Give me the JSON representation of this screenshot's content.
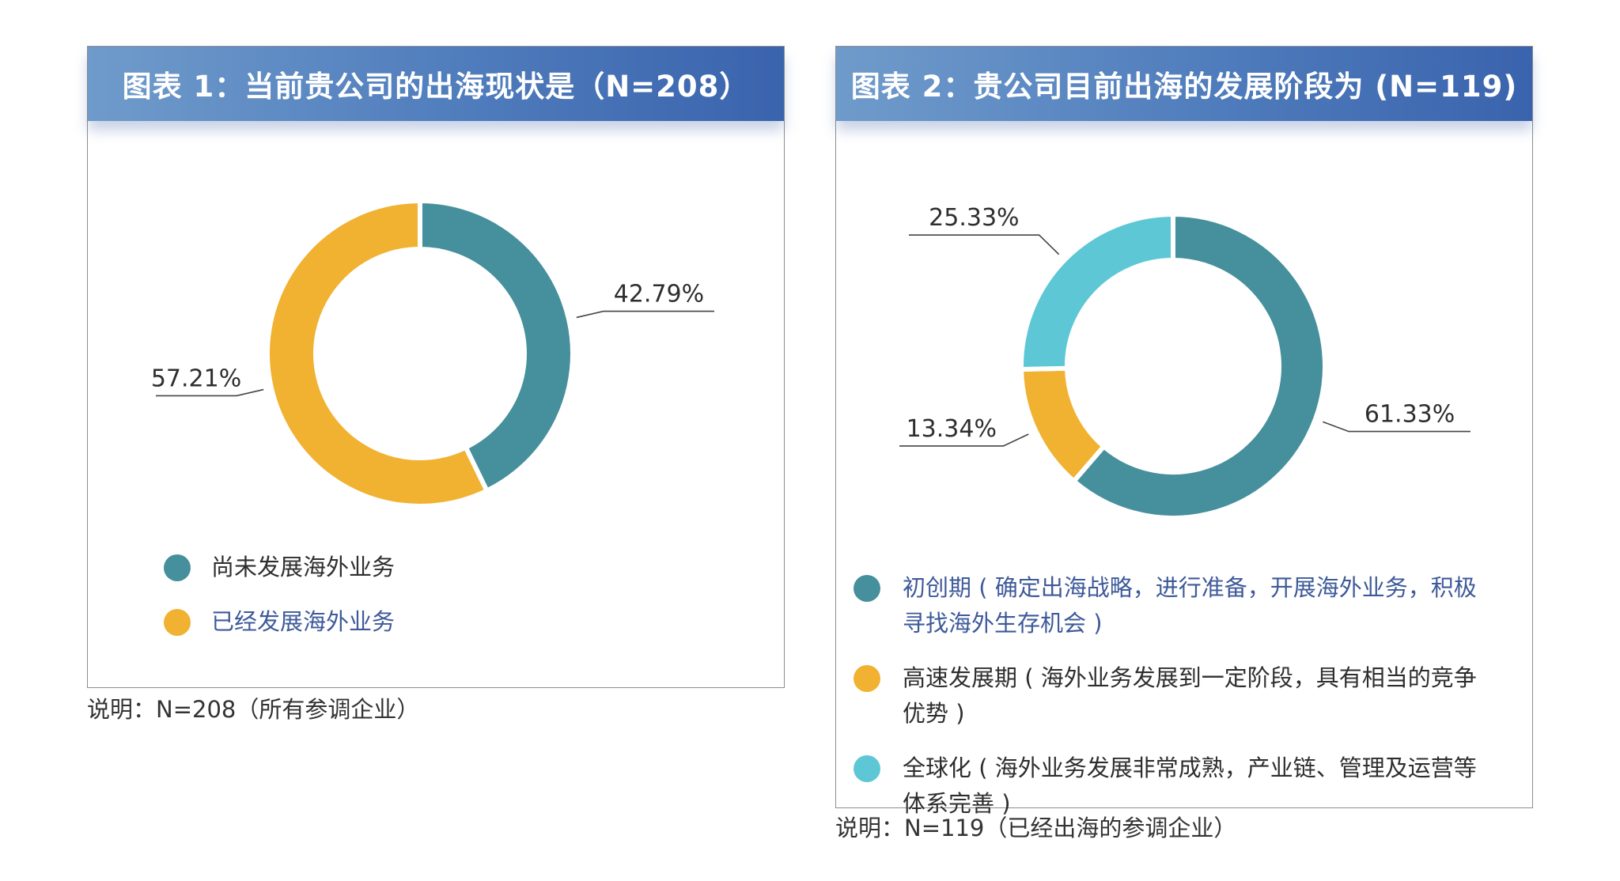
{
  "chart_data": [
    {
      "type": "pie",
      "title": "图表 1：当前贵公司的出海现状是（N=208）",
      "categories": [
        "尚未发展海外业务",
        "已经发展海外业务"
      ],
      "values": [
        42.79,
        57.21
      ],
      "value_labels": [
        "42.79%",
        "57.21%"
      ],
      "colors": [
        "#468f9c",
        "#f1b131"
      ],
      "donut": true,
      "legend_placement": "bottom-left",
      "note": "说明：N=208（所有参调企业）"
    },
    {
      "type": "pie",
      "title": "图表 2：贵公司目前出海的发展阶段为 (N=119)",
      "categories": [
        "初创期 ( 确定出海战略，进行准备，开展海外业务，积极寻找海外生存机会 )",
        "高速发展期 ( 海外业务发展到一定阶段，具有相当的竞争优势 )",
        "全球化 ( 海外业务发展非常成熟，产业链、管理及运营等体系完善 )"
      ],
      "legend_lines": [
        [
          "初创期 ( 确定出海战略，进行准备，开展海外业务，积极",
          "寻找海外生存机会 )"
        ],
        [
          "高速发展期 ( 海外业务发展到一定阶段，具有相当的竞争",
          "优势 )"
        ],
        [
          "全球化 ( 海外业务发展非常成熟，产业链、管理及运营等",
          "体系完善 )"
        ]
      ],
      "values": [
        61.33,
        13.34,
        25.33
      ],
      "value_labels": [
        "61.33%",
        "13.34%",
        "25.33%"
      ],
      "colors": [
        "#468f9c",
        "#f1b131",
        "#5dc7d6"
      ],
      "donut": true,
      "legend_placement": "bottom",
      "note": "说明：N=119（已经出海的参调企业）"
    }
  ]
}
